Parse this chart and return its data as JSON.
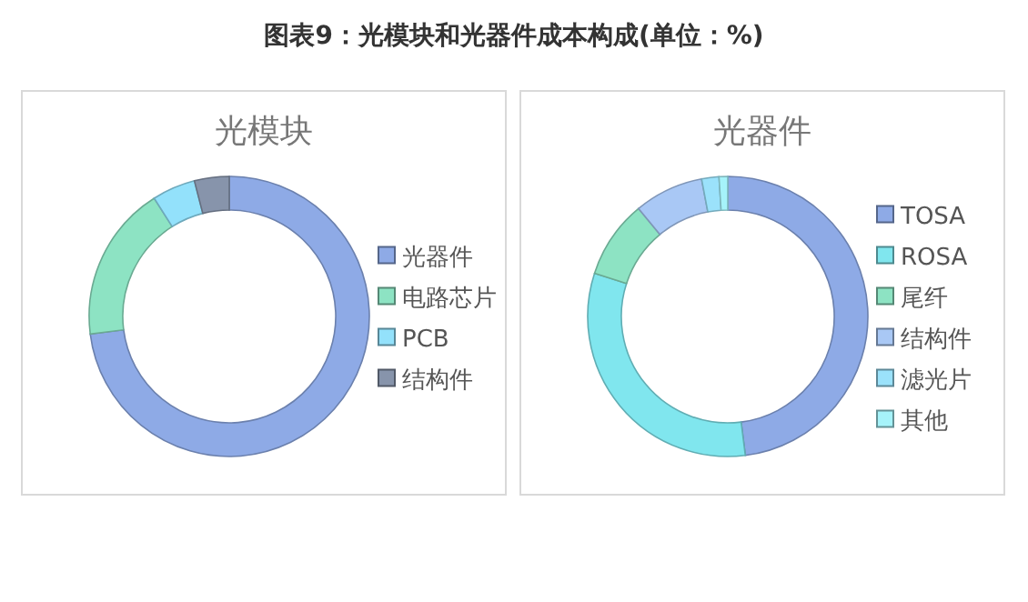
{
  "chart_data": [
    {
      "type": "other",
      "title": "图表9：光模块和光器件成本构成(单位：%)"
    },
    {
      "type": "donut",
      "title": "光模块",
      "categories": [
        "光器件",
        "电路芯片",
        "PCB",
        "结构件"
      ],
      "values": [
        73,
        18,
        5,
        4
      ],
      "colors": [
        "#8eaae6",
        "#8de3c3",
        "#93e1fb",
        "#8794ab"
      ],
      "legend": "right"
    },
    {
      "type": "donut",
      "title": "光器件",
      "categories": [
        "TOSA",
        "ROSA",
        "尾纤",
        "结构件",
        "滤光片",
        "其他"
      ],
      "values": [
        48,
        32,
        9,
        8,
        2,
        1
      ],
      "colors": [
        "#8eaae6",
        "#80e6ee",
        "#8de3c3",
        "#a9c8f5",
        "#9be2fb",
        "#a6f3fa"
      ],
      "legend": "right"
    }
  ]
}
